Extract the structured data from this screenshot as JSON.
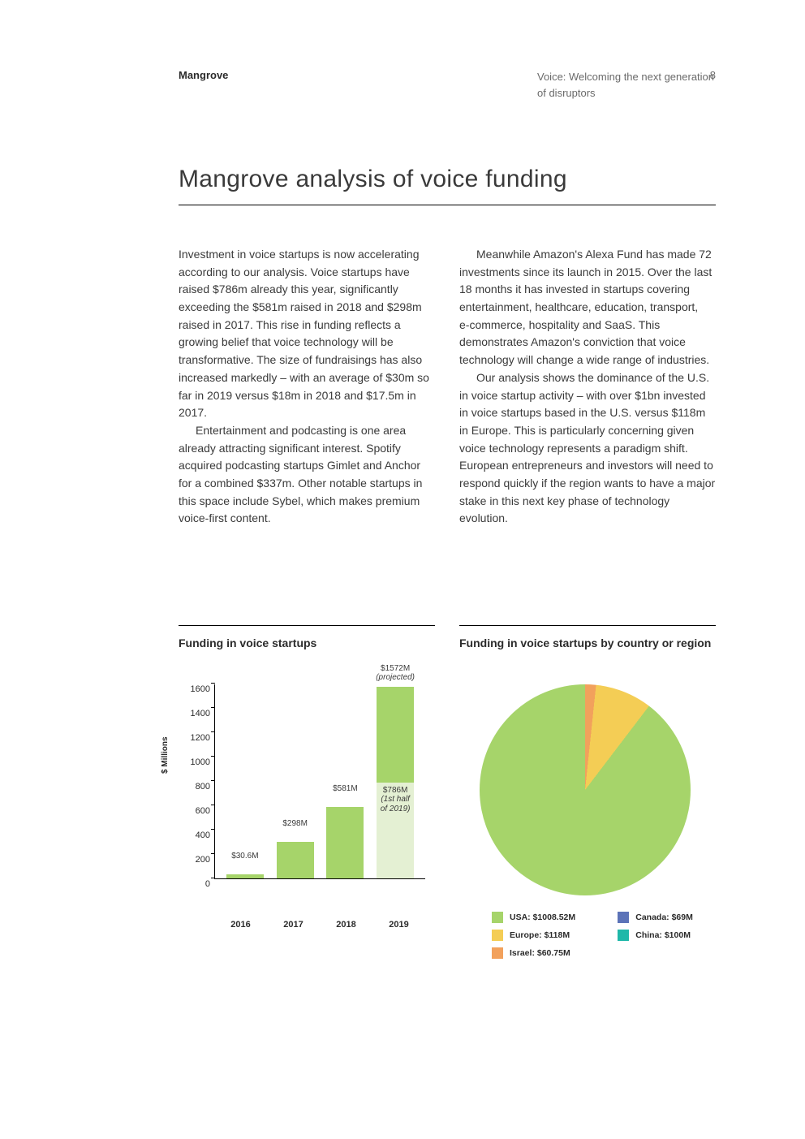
{
  "header": {
    "brand": "Mangrove",
    "doc_title": "Voice: Welcoming the next generation of disruptors",
    "page_number": "8"
  },
  "title": "Mangrove analysis of voice funding",
  "col1": {
    "p1": "Investment in voice startups is now accelerating according to our analysis. Voice startups have raised $786m already this year, significantly exceeding the $581m raised in 2018 and $298m raised in 2017. This rise in funding reflects a growing belief that voice technology will be transformative. The size of fundraisings has also increased markedly – with an average of $30m so far in 2019 versus $18m in 2018 and $17.5m in 2017.",
    "p2": "Entertainment and podcasting is one area already attracting significant interest. Spotify acquired podcasting startups Gimlet and Anchor for a combined $337m. Other notable startups in this space include Sybel, which makes premium voice‑first content."
  },
  "col2": {
    "p1": "Meanwhile Amazon's Alexa Fund has made 72 investments since its launch in 2015. Over the last 18 months it has invested in startups covering entertainment, healthcare, education, transport, e‑commerce, hospitality and SaaS. This demonstrates Amazon's conviction that voice technology will change a wide range of industries.",
    "p2": "Our analysis shows the dominance of the U.S. in voice startup activity – with over $1bn invested in voice startups based in the U.S. versus $118m in Europe. This is particularly concerning given voice technology represents a paradigm shift. European entrepreneurs and investors will need to respond quickly if the region wants to have a major stake in this next key phase of technology evolution."
  },
  "bar_chart": {
    "title": "Funding in voice startups",
    "y_label": "$ Millions",
    "y_max": 1600,
    "y_ticks": [
      "0",
      "200",
      "400",
      "600",
      "800",
      "1000",
      "1200",
      "1400",
      "1600"
    ],
    "categories": [
      "2016",
      "2017",
      "2018",
      "2019"
    ],
    "bars": [
      {
        "value": 30.6,
        "label": "$30.6M"
      },
      {
        "value": 298,
        "label": "$298M"
      },
      {
        "value": 581,
        "label": "$581M"
      }
    ],
    "stacked": {
      "top_value": 786,
      "top_label": "$1572M",
      "top_sub": "(projected)",
      "bottom_value": 786,
      "bottom_label": "$786M",
      "bottom_sub": "(1st half of 2019)"
    },
    "bar_color": "#a6d46a",
    "bar_light_color": "#e4f0d3"
  },
  "pie_chart": {
    "title": "Funding in voice startups by country or region",
    "slices": [
      {
        "label": "USA: $1008.52M",
        "value": 1008.52,
        "color": "#a6d46a"
      },
      {
        "label": "Europe: $118M",
        "value": 118,
        "color": "#f4cd55"
      },
      {
        "label": "Israel: $60.75M",
        "value": 60.75,
        "color": "#f2a15c"
      },
      {
        "label": "Canada: $69M",
        "value": 69,
        "color": "#5c73b8"
      },
      {
        "label": "China: $100M",
        "value": 100,
        "color": "#1fb8a9"
      }
    ]
  }
}
